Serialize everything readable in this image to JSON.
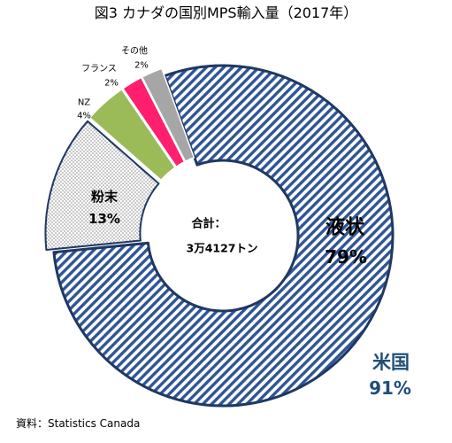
{
  "chart_data": {
    "type": "pie",
    "variant": "donut",
    "title": "図3 カナダの国別MPS輸入量（2017年）",
    "total_label": "合計：",
    "total_value": "3万4127トン",
    "slices": [
      {
        "label": "液状",
        "value": 79,
        "value_label": "79%",
        "fill_pattern": "diagonal-stripes",
        "color": "#2E5597",
        "border_color": "#1F3864",
        "exploded": false
      },
      {
        "label": "粉末",
        "value": 13,
        "value_label": "13%",
        "fill_pattern": "dots",
        "color": "#404040",
        "border_color": "#1F3864",
        "exploded": true
      },
      {
        "label": "NZ",
        "value": 4,
        "value_label": "4%",
        "fill_pattern": "solid",
        "color": "#9BBB59",
        "border_color": "#FFFFFF",
        "exploded": true
      },
      {
        "label": "フランス",
        "value": 2,
        "value_label": "2%",
        "fill_pattern": "solid",
        "color": "#FF1F6E",
        "border_color": "#FFFFFF",
        "exploded": true
      },
      {
        "label": "その他",
        "value": 2,
        "value_label": "2%",
        "fill_pattern": "solid",
        "color": "#A6A6A6",
        "border_color": "#FFFFFF",
        "exploded": true
      }
    ],
    "group": {
      "label": "米国",
      "value": 91,
      "value_label": "91%",
      "color": "#1F4E79"
    }
  },
  "source": "資料：Statistics Canada"
}
